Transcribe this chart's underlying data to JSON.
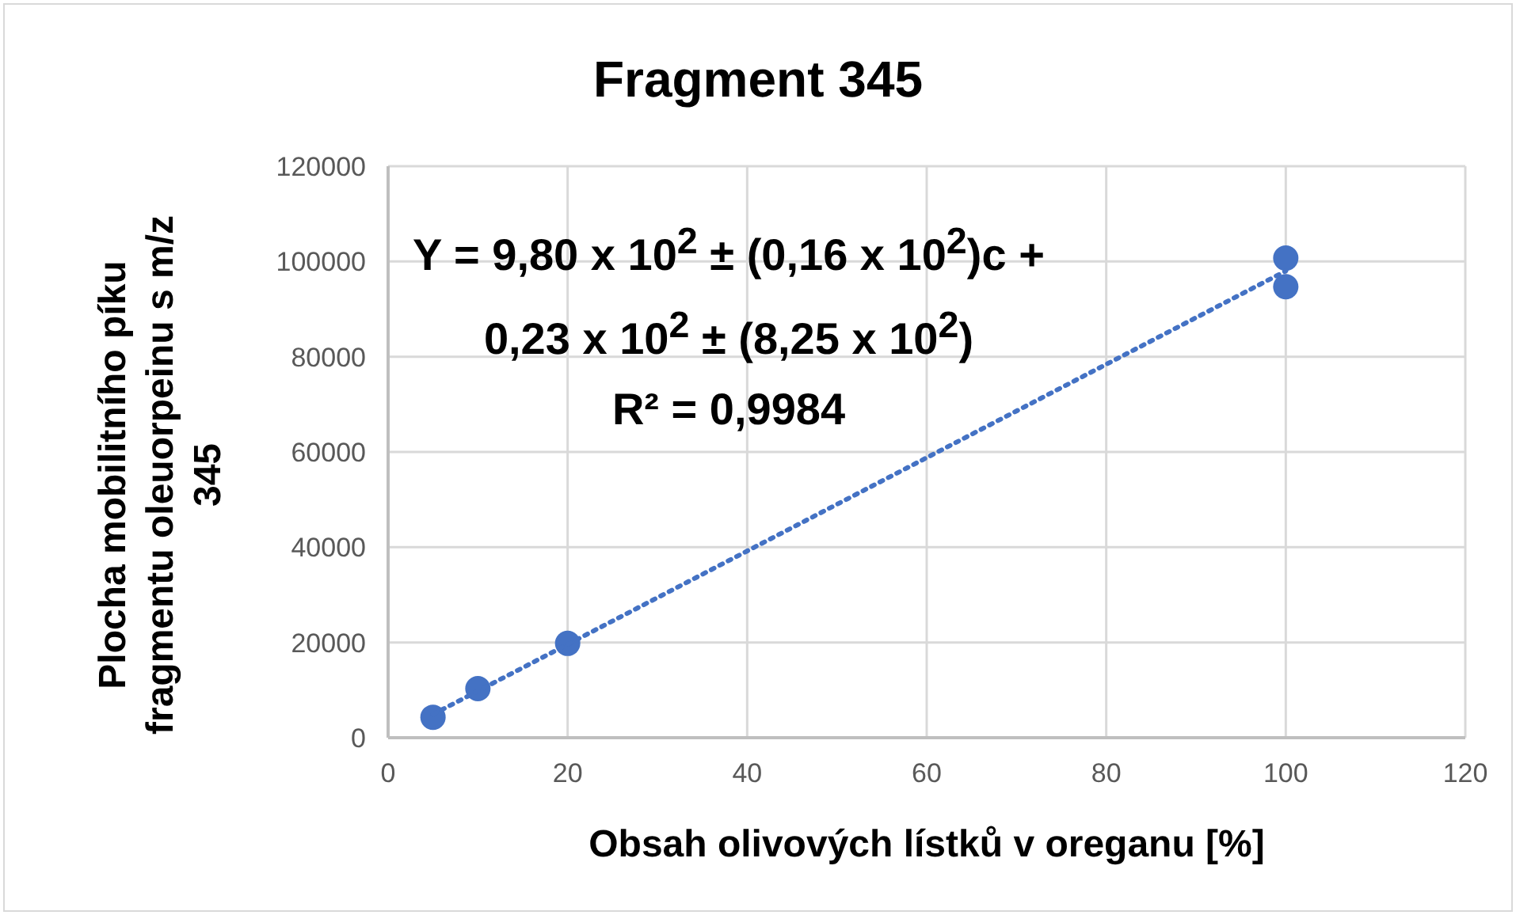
{
  "chart_data": {
    "type": "scatter",
    "title": "Fragment 345",
    "xlabel": "Obsah olivových lístků v oreganu [%]",
    "ylabel": "Plocha mobilitního píku fragmentu oleuorpeinu s m/z 345",
    "annotations": [
      "Y = 9,80 x 10$^{2}$ ± (0,16 x 10$^{2}$)c  +",
      "0,23 x 10$^{2}$ ± (8,25 x 10$^{2}$)",
      "R² = 0,9984"
    ],
    "series": [
      {
        "color": "#4472c4",
        "x": [
          5,
          10,
          20,
          100,
          100
        ],
        "values": [
          4300,
          10300,
          19800,
          100700,
          94700
        ],
        "marker": "circle"
      },
      {
        "type": "line",
        "color": "#4472c4",
        "x": [
          5,
          100
        ],
        "values": [
          4900,
          98000
        ],
        "line_style": "dotted",
        "marker": "none"
      }
    ],
    "xlim": [
      0,
      120
    ],
    "xticks": [
      0,
      20,
      40,
      60,
      80,
      100,
      120
    ],
    "ylim": [
      0,
      120000
    ],
    "yticks": [
      0,
      20000,
      40000,
      60000,
      80000,
      100000,
      120000
    ],
    "grid": true,
    "legend": false
  }
}
